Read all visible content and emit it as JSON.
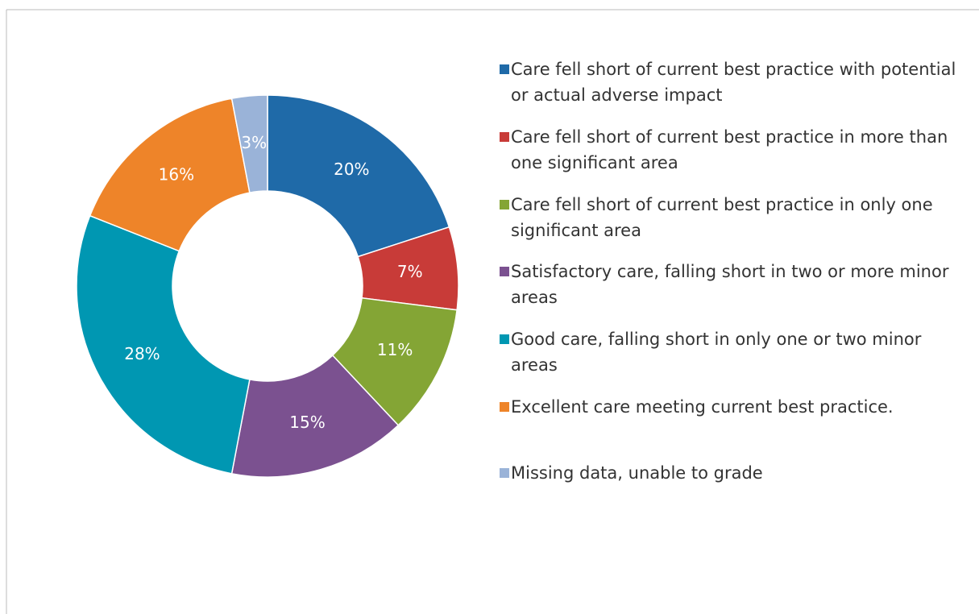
{
  "chart_data": {
    "type": "donut",
    "categories": [
      "Care fell short of current best practice with potential or actual adverse impact",
      "Care fell short of current best practice in more than one significant area",
      "Care fell short of current best practice in only one significant area",
      "Satisfactory care, falling short in two or more minor areas",
      "Good care, falling short in only one or two minor areas",
      "Excellent care meeting current best practice.",
      "Missing data, unable to grade"
    ],
    "values": [
      20,
      7,
      11,
      15,
      28,
      16,
      3
    ],
    "value_labels": [
      "20%",
      "7%",
      "11%",
      "15%",
      "28%",
      "16%",
      "3%"
    ],
    "colors": [
      "#1f6aa8",
      "#c83b38",
      "#84a535",
      "#7b5190",
      "#0097b2",
      "#ee8429",
      "#9ab3d8"
    ],
    "legend": "right"
  }
}
